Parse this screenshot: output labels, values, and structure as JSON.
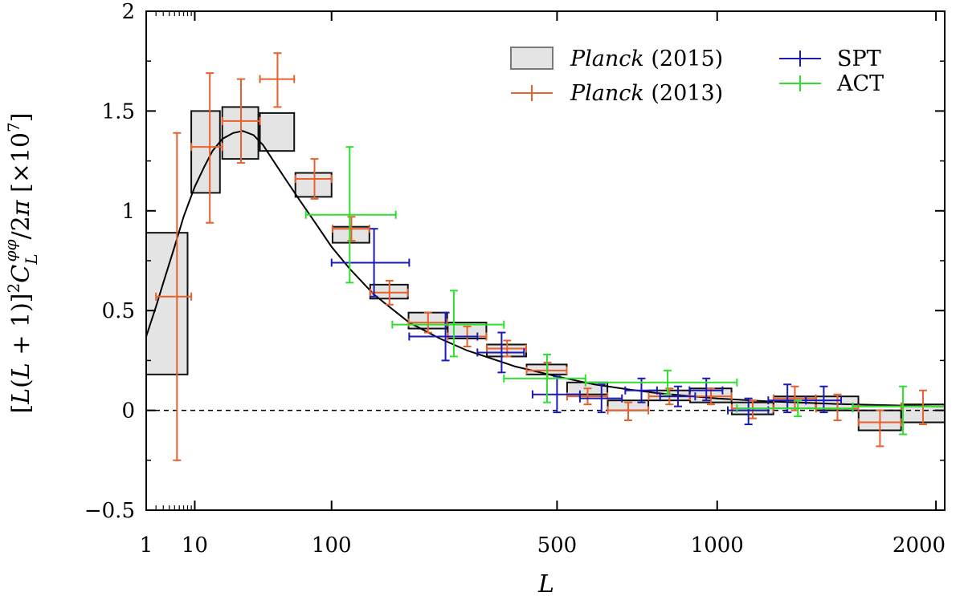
{
  "chart_data": {
    "type": "scatter",
    "title": "",
    "xlabel": "L",
    "ylabel": "[L(L + 1)]²C_L^{φφ}/2π [×10⁷]",
    "x_scale": "custom (L^0.45, lensing convention)",
    "xlim": [
      1,
      2048
    ],
    "ylim": [
      -0.5,
      2.0
    ],
    "x_ticks": [
      "1",
      "10",
      "100",
      "500",
      "1000",
      "2000"
    ],
    "y_ticks": [
      "−0.5",
      "0",
      "0.5",
      "1",
      "1.5",
      "2"
    ],
    "grid": false,
    "legend_placement": "top-right",
    "legend": [
      {
        "name": "Planck",
        "year": "(2015)",
        "style": "box"
      },
      {
        "name": "Planck",
        "year": "(2013)",
        "style": "errorbar"
      },
      {
        "name": "SPT",
        "year": "",
        "style": "errorbar"
      },
      {
        "name": "ACT",
        "year": "",
        "style": "errorbar"
      }
    ],
    "colors": {
      "planck2015_fill": "#e4e4e4",
      "planck2013": "#e8602c",
      "spt": "#1a1ab8",
      "act": "#2ee02e",
      "theory": "#000000"
    },
    "theory_curve": {
      "x": [
        1,
        2,
        3,
        5,
        7,
        10,
        13,
        16,
        20,
        25,
        30,
        36,
        42,
        50,
        60,
        70,
        85,
        100,
        120,
        150,
        200,
        250,
        300,
        400,
        500,
        600,
        700,
        800,
        1000,
        1200,
        1500,
        2000,
        2048
      ],
      "y": [
        0.37,
        0.52,
        0.64,
        0.82,
        0.97,
        1.12,
        1.22,
        1.3,
        1.36,
        1.39,
        1.4,
        1.38,
        1.33,
        1.24,
        1.14,
        1.05,
        0.93,
        0.82,
        0.71,
        0.58,
        0.44,
        0.36,
        0.3,
        0.22,
        0.17,
        0.13,
        0.105,
        0.085,
        0.06,
        0.045,
        0.032,
        0.02,
        0.02
      ]
    },
    "planck2015_bins": [
      {
        "Lmin": 1,
        "Lmax": 8,
        "ylo": 0.18,
        "yhi": 0.89
      },
      {
        "Lmin": 9,
        "Lmax": 19,
        "ylo": 1.09,
        "yhi": 1.5
      },
      {
        "Lmin": 20,
        "Lmax": 39,
        "ylo": 1.26,
        "yhi": 1.52
      },
      {
        "Lmin": 40,
        "Lmax": 65,
        "ylo": 1.3,
        "yhi": 1.49
      },
      {
        "Lmin": 66,
        "Lmax": 100,
        "ylo": 1.07,
        "yhi": 1.19
      },
      {
        "Lmin": 101,
        "Lmax": 144,
        "ylo": 0.84,
        "yhi": 0.92
      },
      {
        "Lmin": 145,
        "Lmax": 198,
        "ylo": 0.56,
        "yhi": 0.63
      },
      {
        "Lmin": 199,
        "Lmax": 263,
        "ylo": 0.41,
        "yhi": 0.49
      },
      {
        "Lmin": 264,
        "Lmax": 338,
        "ylo": 0.36,
        "yhi": 0.44
      },
      {
        "Lmin": 339,
        "Lmax": 425,
        "ylo": 0.27,
        "yhi": 0.33
      },
      {
        "Lmin": 426,
        "Lmax": 525,
        "ylo": 0.18,
        "yhi": 0.23
      },
      {
        "Lmin": 526,
        "Lmax": 637,
        "ylo": 0.08,
        "yhi": 0.14
      },
      {
        "Lmin": 638,
        "Lmax": 762,
        "ylo": 0.0,
        "yhi": 0.05
      },
      {
        "Lmin": 763,
        "Lmax": 901,
        "ylo": 0.05,
        "yhi": 0.1
      },
      {
        "Lmin": 902,
        "Lmax": 1054,
        "ylo": 0.04,
        "yhi": 0.11
      },
      {
        "Lmin": 1055,
        "Lmax": 1221,
        "ylo": -0.02,
        "yhi": 0.04
      },
      {
        "Lmin": 1222,
        "Lmax": 1404,
        "ylo": 0.01,
        "yhi": 0.07
      },
      {
        "Lmin": 1405,
        "Lmax": 1602,
        "ylo": 0.0,
        "yhi": 0.07
      },
      {
        "Lmin": 1603,
        "Lmax": 1815,
        "ylo": -0.1,
        "yhi": 0.0
      },
      {
        "Lmin": 1816,
        "Lmax": 2048,
        "ylo": -0.06,
        "yhi": 0.03
      }
    ],
    "planck2013_points": [
      {
        "L": 5.5,
        "Lmin": 2,
        "Lmax": 9,
        "y": 0.57,
        "ylo": -0.25,
        "yhi": 1.39
      },
      {
        "L": 15,
        "Lmin": 9,
        "Lmax": 20,
        "y": 1.32,
        "ylo": 0.94,
        "yhi": 1.69
      },
      {
        "L": 29,
        "Lmin": 20,
        "Lmax": 40,
        "y": 1.45,
        "ylo": 1.24,
        "yhi": 1.66
      },
      {
        "L": 52,
        "Lmin": 40,
        "Lmax": 65,
        "y": 1.66,
        "ylo": 1.52,
        "yhi": 1.79
      },
      {
        "L": 83,
        "Lmin": 66,
        "Lmax": 100,
        "y": 1.16,
        "ylo": 1.06,
        "yhi": 1.26
      },
      {
        "L": 122,
        "Lmin": 101,
        "Lmax": 144,
        "y": 0.91,
        "ylo": 0.85,
        "yhi": 0.97
      },
      {
        "L": 171,
        "Lmin": 145,
        "Lmax": 198,
        "y": 0.59,
        "ylo": 0.53,
        "yhi": 0.65
      },
      {
        "L": 230,
        "Lmin": 199,
        "Lmax": 263,
        "y": 0.44,
        "ylo": 0.39,
        "yhi": 0.49
      },
      {
        "L": 300,
        "Lmin": 264,
        "Lmax": 338,
        "y": 0.37,
        "ylo": 0.32,
        "yhi": 0.42
      },
      {
        "L": 382,
        "Lmin": 339,
        "Lmax": 425,
        "y": 0.31,
        "ylo": 0.27,
        "yhi": 0.35
      },
      {
        "L": 476,
        "Lmin": 426,
        "Lmax": 525,
        "y": 0.2,
        "ylo": 0.16,
        "yhi": 0.24
      },
      {
        "L": 581,
        "Lmin": 526,
        "Lmax": 637,
        "y": 0.07,
        "ylo": 0.03,
        "yhi": 0.11
      },
      {
        "L": 699,
        "Lmin": 638,
        "Lmax": 762,
        "y": 0.0,
        "ylo": -0.05,
        "yhi": 0.04
      },
      {
        "L": 831,
        "Lmin": 763,
        "Lmax": 901,
        "y": 0.07,
        "ylo": 0.03,
        "yhi": 0.11
      },
      {
        "L": 977,
        "Lmin": 902,
        "Lmax": 1054,
        "y": 0.07,
        "ylo": 0.03,
        "yhi": 0.11
      },
      {
        "L": 1137,
        "Lmin": 1055,
        "Lmax": 1221,
        "y": 0.01,
        "ylo": -0.04,
        "yhi": 0.05
      },
      {
        "L": 1312,
        "Lmin": 1222,
        "Lmax": 1404,
        "y": 0.06,
        "ylo": 0.0,
        "yhi": 0.12
      },
      {
        "L": 1503,
        "Lmin": 1405,
        "Lmax": 1602,
        "y": 0.01,
        "ylo": -0.05,
        "yhi": 0.08
      },
      {
        "L": 1708,
        "Lmin": 1603,
        "Lmax": 1815,
        "y": -0.06,
        "ylo": -0.18,
        "yhi": 0.0
      },
      {
        "L": 1930,
        "Lmin": 1816,
        "Lmax": 2048,
        "y": 0.02,
        "ylo": -0.07,
        "yhi": 0.1
      }
    ],
    "spt_points": [
      {
        "L": 150,
        "Lmin": 100,
        "Lmax": 200,
        "y": 0.74,
        "ylo": 0.57,
        "yhi": 0.91
      },
      {
        "L": 260,
        "Lmin": 200,
        "Lmax": 320,
        "y": 0.37,
        "ylo": 0.25,
        "yhi": 0.49
      },
      {
        "L": 370,
        "Lmin": 320,
        "Lmax": 420,
        "y": 0.29,
        "ylo": 0.19,
        "yhi": 0.39
      },
      {
        "L": 500,
        "Lmin": 440,
        "Lmax": 560,
        "y": 0.08,
        "ylo": -0.01,
        "yhi": 0.17
      },
      {
        "L": 620,
        "Lmin": 560,
        "Lmax": 680,
        "y": 0.06,
        "ylo": -0.01,
        "yhi": 0.13
      },
      {
        "L": 740,
        "Lmin": 690,
        "Lmax": 790,
        "y": 0.1,
        "ylo": 0.04,
        "yhi": 0.16
      },
      {
        "L": 860,
        "Lmin": 800,
        "Lmax": 920,
        "y": 0.07,
        "ylo": 0.02,
        "yhi": 0.12
      },
      {
        "L": 960,
        "Lmin": 900,
        "Lmax": 1020,
        "y": 0.1,
        "ylo": 0.05,
        "yhi": 0.16
      },
      {
        "L": 1120,
        "Lmin": 1040,
        "Lmax": 1200,
        "y": 0.0,
        "ylo": -0.07,
        "yhi": 0.06
      },
      {
        "L": 1280,
        "Lmin": 1200,
        "Lmax": 1360,
        "y": 0.05,
        "ylo": -0.01,
        "yhi": 0.13
      },
      {
        "L": 1440,
        "Lmin": 1360,
        "Lmax": 1520,
        "y": 0.05,
        "ylo": -0.01,
        "yhi": 0.12
      }
    ],
    "act_points": [
      {
        "L": 120,
        "Lmin": 75,
        "Lmax": 180,
        "y": 0.98,
        "ylo": 0.64,
        "yhi": 1.32
      },
      {
        "L": 275,
        "Lmin": 175,
        "Lmax": 375,
        "y": 0.43,
        "ylo": 0.27,
        "yhi": 0.6
      },
      {
        "L": 475,
        "Lmin": 375,
        "Lmax": 575,
        "y": 0.16,
        "ylo": 0.04,
        "yhi": 0.28
      },
      {
        "L": 825,
        "Lmin": 575,
        "Lmax": 1075,
        "y": 0.14,
        "ylo": 0.08,
        "yhi": 0.2
      },
      {
        "L": 1325,
        "Lmin": 1075,
        "Lmax": 1575,
        "y": 0.01,
        "ylo": -0.03,
        "yhi": 0.05
      },
      {
        "L": 1825,
        "Lmin": 1575,
        "Lmax": 2048,
        "y": 0.02,
        "ylo": -0.12,
        "yhi": 0.12
      }
    ]
  }
}
